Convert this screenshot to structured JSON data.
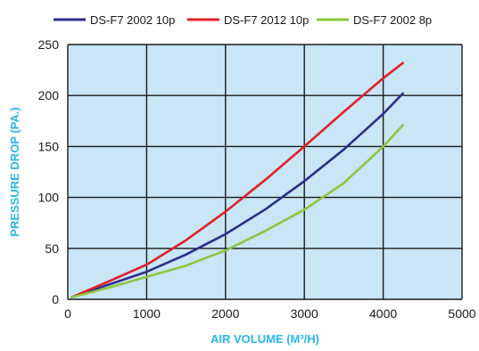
{
  "chart_data": {
    "type": "line",
    "title": "",
    "xlabel": "AIR VOLUME (M³/H)",
    "ylabel": "PRESSURE  DROP (PA.)",
    "xlim": [
      0,
      5000
    ],
    "ylim": [
      0,
      250
    ],
    "x_ticks": [
      0,
      1000,
      2000,
      3000,
      4000,
      5000
    ],
    "y_ticks": [
      0,
      50,
      100,
      150,
      200,
      250
    ],
    "x_tick_labels": [
      "0",
      "1000",
      "2000",
      "3000",
      "4000",
      "5000"
    ],
    "y_tick_labels": [
      "0",
      "50",
      "100",
      "150",
      "200",
      "250"
    ],
    "grid": true,
    "legend_position": "top",
    "plot_background": "#c8e6f5",
    "grid_color": "#1a1a1a",
    "axis_title_color": "#29b5e8",
    "series": [
      {
        "name": "DS-F7 2002 10p",
        "color": "#2e2e8c",
        "x": [
          50,
          500,
          1000,
          1500,
          2000,
          2500,
          3000,
          3500,
          4000,
          4250
        ],
        "y": [
          2,
          14,
          27,
          44,
          64,
          88,
          116,
          147,
          182,
          202
        ]
      },
      {
        "name": "DS-F7 2012 10p",
        "color": "#e3202a",
        "x": [
          50,
          500,
          1000,
          1500,
          2000,
          2500,
          3000,
          3500,
          4000,
          4250
        ],
        "y": [
          2,
          17,
          34,
          58,
          86,
          117,
          150,
          184,
          217,
          232
        ]
      },
      {
        "name": "DS-F7 2002 8p",
        "color": "#8dc63f",
        "x": [
          50,
          500,
          1000,
          1500,
          2000,
          2500,
          3000,
          3500,
          4000,
          4250
        ],
        "y": [
          2,
          11,
          22,
          33,
          48,
          67,
          88,
          114,
          150,
          171
        ]
      }
    ]
  }
}
